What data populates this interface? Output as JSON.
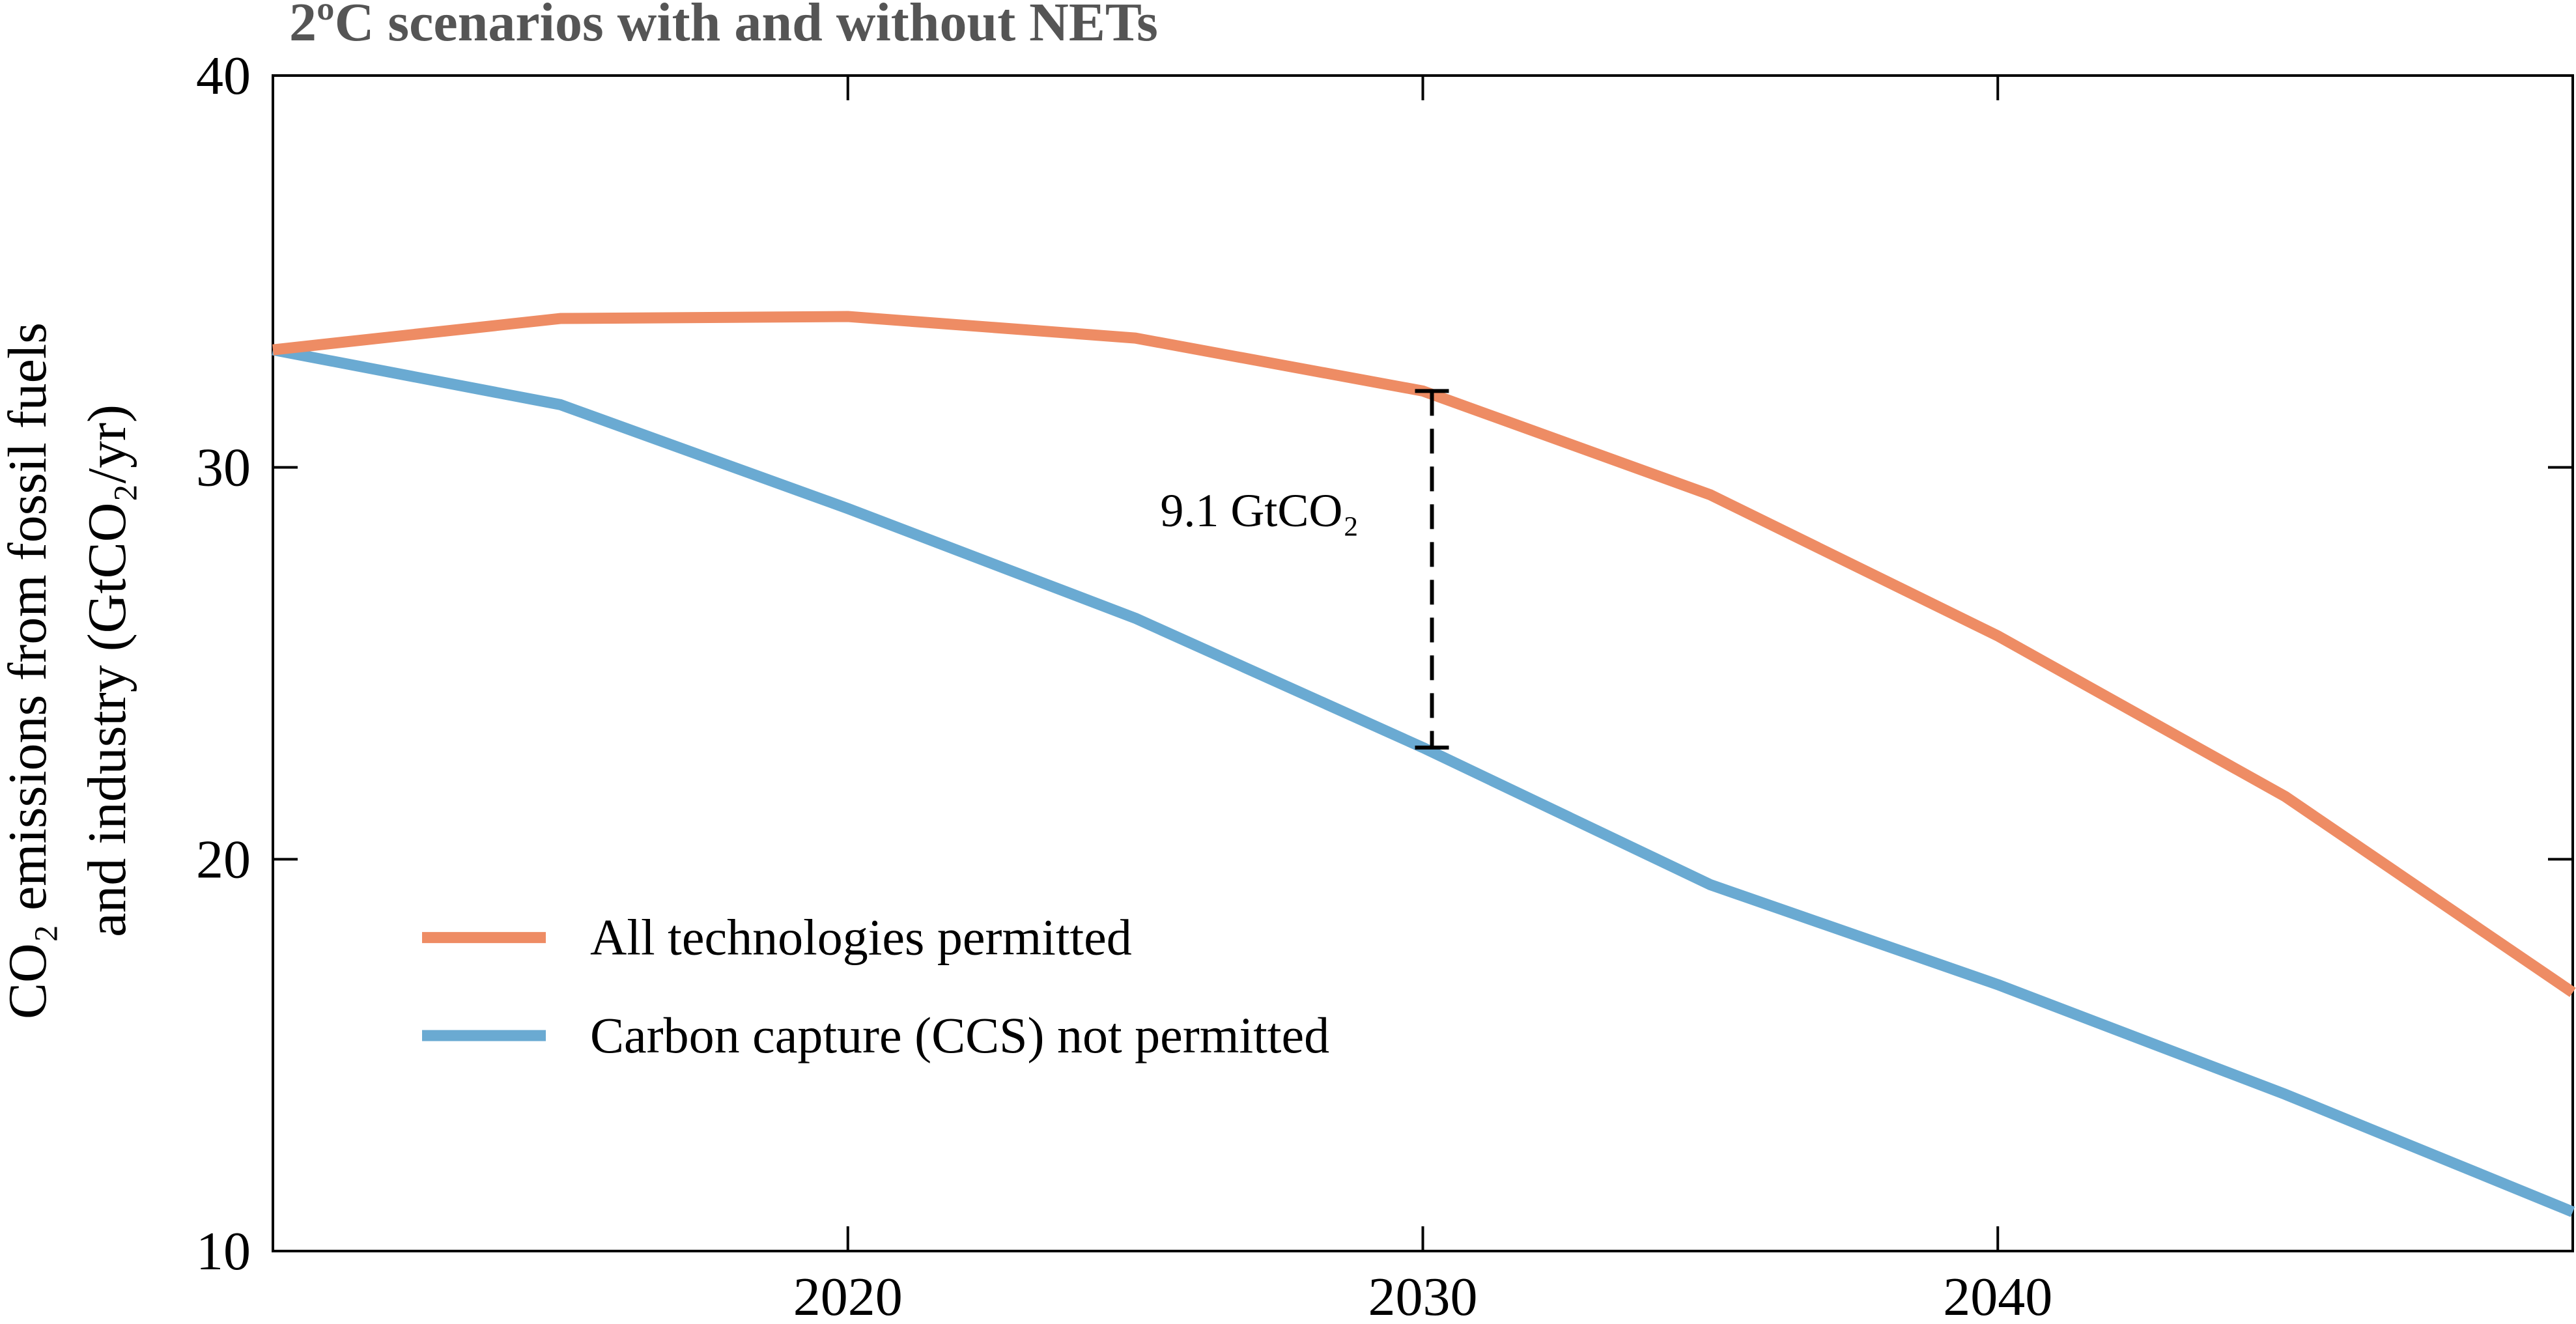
{
  "chart_data": {
    "type": "line",
    "title": "2ºC scenarios with and without NETs",
    "ylabel_line1": "CO₂ emissions from fossil fuels",
    "ylabel_line2": "and industry (GtCO₂/yr)",
    "xlabel": "",
    "xlim": [
      2010,
      2050
    ],
    "ylim": [
      10,
      40
    ],
    "x_ticks": [
      2020,
      2030,
      2040
    ],
    "y_ticks": [
      10,
      20,
      30,
      40
    ],
    "grid": false,
    "legend_position": "lower-left",
    "series": [
      {
        "name": "All technologies permitted",
        "color": "#EE8C64",
        "x": [
          2010,
          2015,
          2020,
          2025,
          2030,
          2035,
          2040,
          2045,
          2050
        ],
        "y": [
          33.0,
          33.8,
          33.85,
          33.3,
          31.95,
          29.3,
          25.7,
          21.6,
          16.6
        ]
      },
      {
        "name": "Carbon capture (CCS) not permitted",
        "color": "#6AAAD2",
        "x": [
          2010,
          2015,
          2020,
          2025,
          2030,
          2035,
          2040,
          2045,
          2050
        ],
        "y": [
          33.0,
          31.6,
          28.95,
          26.15,
          22.85,
          19.35,
          16.8,
          14.0,
          11.0
        ]
      }
    ],
    "annotation": {
      "text": "9.1 GtCO₂",
      "x": 2030,
      "y_top": 31.95,
      "y_bottom": 22.85
    }
  }
}
